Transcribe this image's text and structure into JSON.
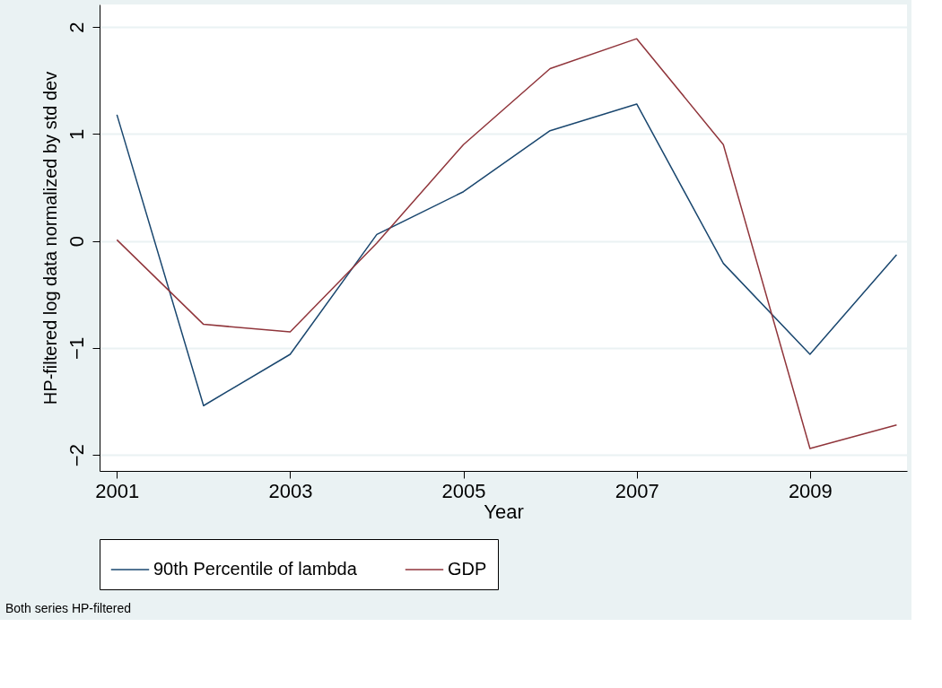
{
  "chart_data": {
    "type": "line",
    "xlabel": "Year",
    "ylabel": "HP-filtered log data normalized by std dev",
    "x": [
      2001,
      2002,
      2003,
      2004,
      2005,
      2006,
      2007,
      2008,
      2009,
      2010
    ],
    "series": [
      {
        "name": "90th Percentile of lambda",
        "color": "#1a476f",
        "values": [
          1.18,
          -1.54,
          -1.06,
          0.06,
          0.46,
          1.03,
          1.28,
          -0.21,
          -1.06,
          -0.13
        ]
      },
      {
        "name": "GDP",
        "color": "#90353b",
        "values": [
          0.01,
          -0.78,
          -0.85,
          -0.02,
          0.9,
          1.61,
          1.89,
          0.9,
          -1.94,
          -1.72
        ]
      }
    ],
    "xlim": [
      2000.8,
      2010.12
    ],
    "xticks": [
      2001,
      2003,
      2005,
      2007,
      2009
    ],
    "ylim": [
      -2.15,
      2.21
    ],
    "yticks": [
      -2,
      -1,
      0,
      1,
      2
    ],
    "grid": "y",
    "legend": "bottom",
    "marker": "none",
    "line_style": "solid",
    "annotations": [
      "Both series HP-filtered"
    ]
  }
}
